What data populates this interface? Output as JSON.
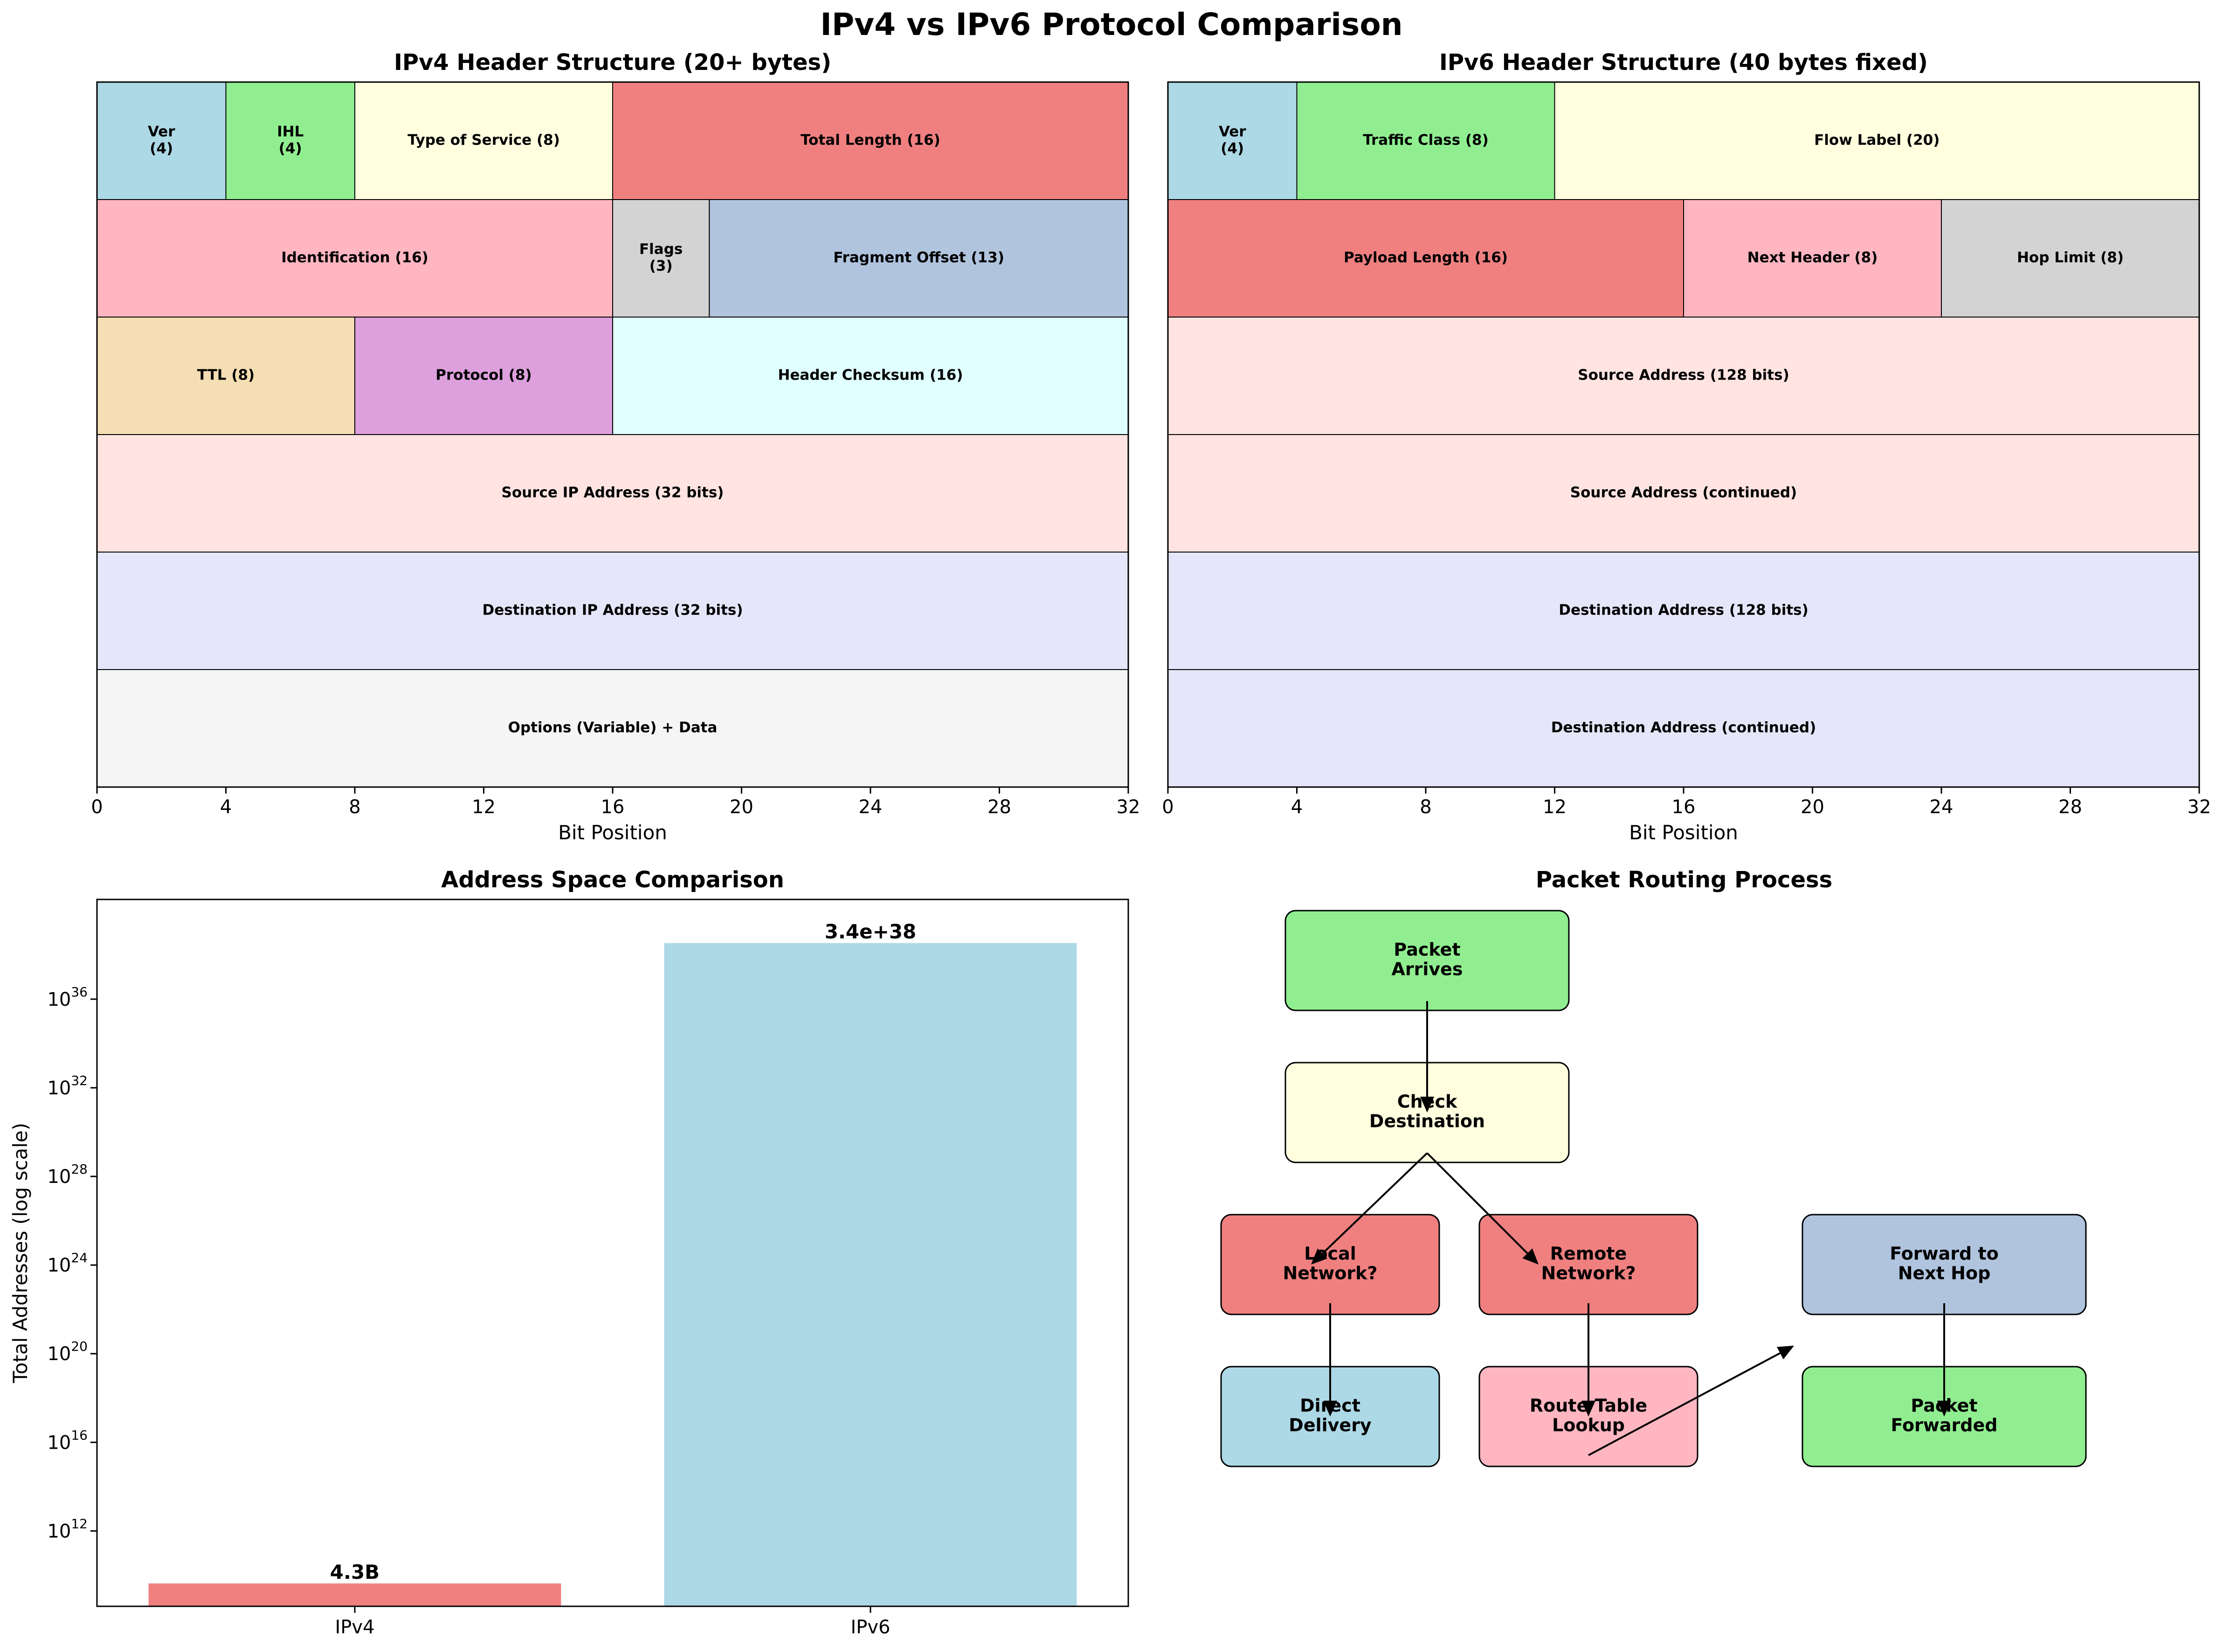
{
  "title": "IPv4 vs IPv6 Protocol Comparison",
  "chart_data": [
    {
      "type": "table",
      "title": "IPv4 Header Structure (20+ bytes)",
      "xlabel": "Bit Position",
      "xlim": [
        0,
        32
      ],
      "xticks": [
        "0",
        "4",
        "8",
        "12",
        "16",
        "20",
        "24",
        "28",
        "32"
      ],
      "fields": [
        {
          "label": "Ver\n(4)",
          "row": 0,
          "start": 0,
          "bits": 4,
          "color": "#ADD8E6"
        },
        {
          "label": "IHL\n(4)",
          "row": 0,
          "start": 4,
          "bits": 4,
          "color": "#90EE90"
        },
        {
          "label": "Type of Service (8)",
          "row": 0,
          "start": 8,
          "bits": 8,
          "color": "#FFFFE0"
        },
        {
          "label": "Total Length (16)",
          "row": 0,
          "start": 16,
          "bits": 16,
          "color": "#F08080"
        },
        {
          "label": "Identification (16)",
          "row": 1,
          "start": 0,
          "bits": 16,
          "color": "#FFB6C1"
        },
        {
          "label": "Flags\n(3)",
          "row": 1,
          "start": 16,
          "bits": 3,
          "color": "#D3D3D3"
        },
        {
          "label": "Fragment Offset (13)",
          "row": 1,
          "start": 19,
          "bits": 13,
          "color": "#B0C4DE"
        },
        {
          "label": "TTL (8)",
          "row": 2,
          "start": 0,
          "bits": 8,
          "color": "#F5DEB3"
        },
        {
          "label": "Protocol (8)",
          "row": 2,
          "start": 8,
          "bits": 8,
          "color": "#DDA0DD"
        },
        {
          "label": "Header Checksum (16)",
          "row": 2,
          "start": 16,
          "bits": 16,
          "color": "#E0FFFF"
        },
        {
          "label": "Source IP Address (32 bits)",
          "row": 3,
          "start": 0,
          "bits": 32,
          "color": "#FFE4E1"
        },
        {
          "label": "Destination IP Address (32 bits)",
          "row": 4,
          "start": 0,
          "bits": 32,
          "color": "#E6E6FA"
        },
        {
          "label": "Options (Variable) + Data",
          "row": 5,
          "start": 0,
          "bits": 32,
          "color": "#F5F5F5"
        }
      ]
    },
    {
      "type": "table",
      "title": "IPv6 Header Structure (40 bytes fixed)",
      "xlabel": "Bit Position",
      "xlim": [
        0,
        32
      ],
      "xticks": [
        "0",
        "4",
        "8",
        "12",
        "16",
        "20",
        "24",
        "28",
        "32"
      ],
      "fields": [
        {
          "label": "Ver\n(4)",
          "row": 0,
          "start": 0,
          "bits": 4,
          "color": "#ADD8E6"
        },
        {
          "label": "Traffic Class (8)",
          "row": 0,
          "start": 4,
          "bits": 8,
          "color": "#90EE90"
        },
        {
          "label": "Flow Label (20)",
          "row": 0,
          "start": 12,
          "bits": 20,
          "color": "#FFFFE0"
        },
        {
          "label": "Payload Length (16)",
          "row": 1,
          "start": 0,
          "bits": 16,
          "color": "#F08080"
        },
        {
          "label": "Next Header (8)",
          "row": 1,
          "start": 16,
          "bits": 8,
          "color": "#FFB6C1"
        },
        {
          "label": "Hop Limit (8)",
          "row": 1,
          "start": 24,
          "bits": 8,
          "color": "#D3D3D3"
        },
        {
          "label": "Source Address (128 bits)",
          "row": 2,
          "start": 0,
          "bits": 32,
          "color": "#FFE4E1"
        },
        {
          "label": "Source Address (continued)",
          "row": 3,
          "start": 0,
          "bits": 32,
          "color": "#FFE4E1"
        },
        {
          "label": "Destination Address (128 bits)",
          "row": 4,
          "start": 0,
          "bits": 32,
          "color": "#E6E6FA"
        },
        {
          "label": "Destination Address (continued)",
          "row": 5,
          "start": 0,
          "bits": 32,
          "color": "#E6E6FA"
        }
      ]
    },
    {
      "type": "bar",
      "title": "Address Space Comparison",
      "ylabel": "Total Addresses (log scale)",
      "yscale": "log",
      "ylim_log10": [
        8.6,
        40.5
      ],
      "ytick_exponents": [
        "12",
        "16",
        "20",
        "24",
        "28",
        "32",
        "36"
      ],
      "ytick_base": "10",
      "categories": [
        "IPv4",
        "IPv6"
      ],
      "values": [
        4294967296,
        3.4e+38
      ],
      "data_labels": [
        "4.3B",
        "3.4e+38"
      ],
      "colors": [
        "#F08080",
        "#ADD8E6"
      ]
    },
    {
      "type": "diagram",
      "title": "Packet Routing Process",
      "nodes": [
        {
          "id": "arrives",
          "label": "Packet\nArrives",
          "color": "#90EE90"
        },
        {
          "id": "check",
          "label": "Check\nDestination",
          "color": "#FFFFE0"
        },
        {
          "id": "local",
          "label": "Local\nNetwork?",
          "color": "#F08080"
        },
        {
          "id": "remote",
          "label": "Remote\nNetwork?",
          "color": "#F08080"
        },
        {
          "id": "forward",
          "label": "Forward to\nNext Hop",
          "color": "#B0C4DE"
        },
        {
          "id": "direct",
          "label": "Direct\nDelivery",
          "color": "#ADD8E6"
        },
        {
          "id": "lookup",
          "label": "Route Table\nLookup",
          "color": "#FFB6C1"
        },
        {
          "id": "forwarded",
          "label": "Packet\nForwarded",
          "color": "#90EE90"
        }
      ],
      "edges": [
        {
          "from": "arrives",
          "to": "check"
        },
        {
          "from": "check",
          "to": "local"
        },
        {
          "from": "check",
          "to": "remote"
        },
        {
          "from": "local",
          "to": "direct"
        },
        {
          "from": "remote",
          "to": "lookup"
        },
        {
          "from": "lookup",
          "to": "forward"
        },
        {
          "from": "forward",
          "to": "forwarded"
        }
      ]
    }
  ]
}
